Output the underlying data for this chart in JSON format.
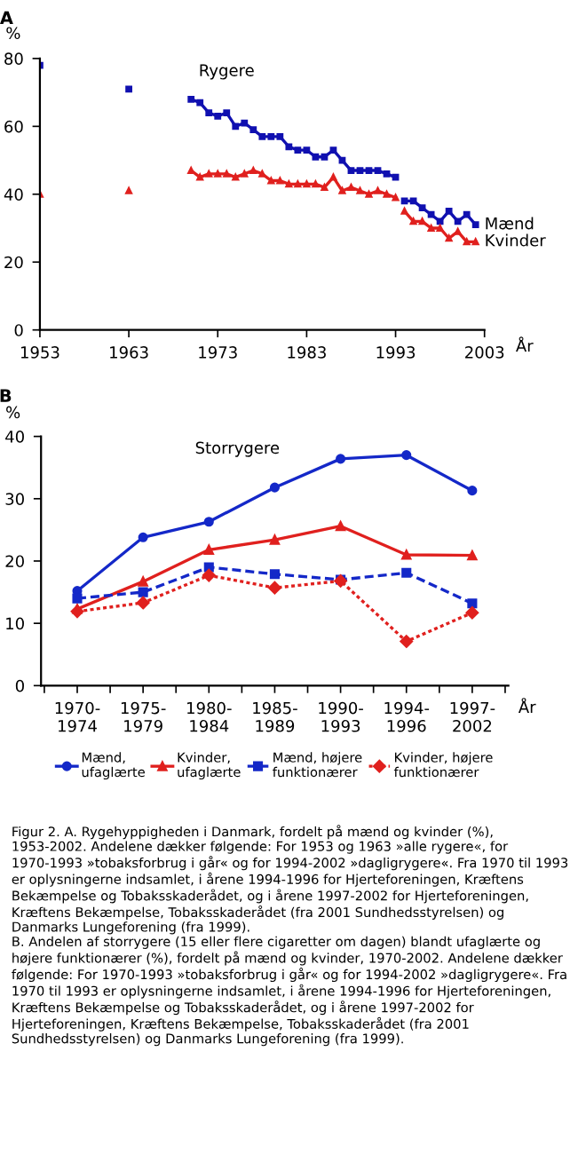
{
  "chart_data": [
    {
      "type": "line",
      "title": "A",
      "ylabel": "%",
      "xlabel": "År",
      "xlim": [
        1953,
        2003
      ],
      "ylim": [
        0,
        80
      ],
      "xticks": [
        1953,
        1963,
        1973,
        1983,
        1993,
        2003
      ],
      "yticks": [
        0,
        20,
        40,
        60,
        80
      ],
      "annotations": [
        "Rygere"
      ],
      "series": [
        {
          "name": "Mænd",
          "color": "#1010b0",
          "marker": "square",
          "line_style": "solid",
          "x": [
            1953,
            1958,
            1963,
            1966,
            1970,
            1971,
            1972,
            1973,
            1974,
            1975,
            1976,
            1977,
            1978,
            1979,
            1980,
            1981,
            1982,
            1983,
            1984,
            1985,
            1986,
            1987,
            1988,
            1989,
            1990,
            1991,
            1992,
            1993,
            1993.5,
            1994,
            1995,
            1996,
            1997,
            1998,
            1999,
            2000,
            2001,
            2002
          ],
          "values": [
            78,
            null,
            71,
            null,
            68,
            67,
            64,
            63,
            64,
            60,
            61,
            59,
            57,
            57,
            57,
            54,
            53,
            53,
            51,
            51,
            53,
            50,
            47,
            47,
            47,
            47,
            46,
            45,
            null,
            38,
            38,
            36,
            34,
            32,
            35,
            32,
            34,
            31
          ]
        },
        {
          "name": "Kvinder",
          "color": "#e0201e",
          "marker": "triangle",
          "line_style": "solid",
          "x": [
            1953,
            1958,
            1963,
            1966,
            1970,
            1971,
            1972,
            1973,
            1974,
            1975,
            1976,
            1977,
            1978,
            1979,
            1980,
            1981,
            1982,
            1983,
            1984,
            1985,
            1986,
            1987,
            1988,
            1989,
            1990,
            1991,
            1992,
            1993,
            1993.5,
            1994,
            1995,
            1996,
            1997,
            1998,
            1999,
            2000,
            2001,
            2002
          ],
          "values": [
            40,
            null,
            41,
            null,
            47,
            45,
            46,
            46,
            46,
            45,
            46,
            47,
            46,
            44,
            44,
            43,
            43,
            43,
            43,
            42,
            45,
            41,
            42,
            41,
            40,
            41,
            40,
            39,
            null,
            35,
            32,
            32,
            30,
            30,
            27,
            29,
            26,
            26
          ]
        }
      ]
    },
    {
      "type": "line",
      "title": "B",
      "ylabel": "%",
      "xlabel": "År",
      "ylim": [
        0,
        40
      ],
      "yticks": [
        0,
        10,
        20,
        30,
        40
      ],
      "legend": "bottom",
      "categories": [
        "1970-\n1974",
        "1975-\n1979",
        "1980-\n1984",
        "1985-\n1989",
        "1990-\n1993",
        "1994-\n1996",
        "1997-\n2002"
      ],
      "annotations": [
        "Storrygere",
        "Figur 2. A. Rygehyppigheden i Danmark, fordelt på mænd og kvinder (%), 1953-2002. Andelene dækker følgende: For 1953 og 1963 »alle rygere«, for 1970-1993 »tobaksforbrug i går« og for 1994-2002 »dagligrygere«. Fra 1970 til 1993 er oplysningerne indsamlet, i årene 1994-1996 for Hjerteforeningen, Kræftens Bekæmpelse og Tobaksskaderådet, og i årene 1997-2002 for Hjerteforeningen, Kræftens Bekæmpelse, Tobaksskaderådet (fra 2001 Sundhedsstyrelsen) og Danmarks Lungeforening (fra 1999).",
        "B. Andelen af storrygere (15 eller flere cigaretter om dagen) blandt ufaglærte og højere funktionærer (%), fordelt på mænd og kvinder, 1970-2002. Andelene dækker følgende: For 1970-1993 »tobaksforbrug i går« og for 1994-2002 »dagligrygere«. Fra 1970 til 1993 er oplysningerne indsamlet, i årene 1994-1996 for Hjerteforeningen, Kræftens Bekæmpelse og Tobaksskaderådet, og i årene 1997-2002 for Hjerteforeningen, Kræftens Bekæmpelse, Tobaksskaderådet (fra 2001 Sundhedsstyrelsen) og Danmarks Lungeforening (fra 1999)."
      ],
      "series": [
        {
          "name": "Mænd,\nufaglærte",
          "color": "#1428c8",
          "marker": "circle",
          "line_style": "solid",
          "values": [
            15.2,
            23.8,
            26.3,
            31.8,
            36.4,
            37.0,
            31.3
          ]
        },
        {
          "name": "Kvinder,\nufaglærte",
          "color": "#e0201e",
          "marker": "triangle",
          "line_style": "solid",
          "values": [
            12.3,
            16.7,
            21.8,
            23.4,
            25.6,
            21.0,
            20.9
          ]
        },
        {
          "name": "Mænd, højere\nfunktionærer",
          "color": "#1428c8",
          "marker": "square",
          "line_style": "dashed",
          "values": [
            14.0,
            15.0,
            19.0,
            17.9,
            17.0,
            18.1,
            13.2
          ]
        },
        {
          "name": "Kvinder, højere\nfunktionærer",
          "color": "#e0201e",
          "marker": "diamond",
          "line_style": "dotted",
          "values": [
            11.9,
            13.3,
            17.7,
            15.7,
            16.8,
            7.1,
            11.7
          ]
        }
      ]
    }
  ]
}
